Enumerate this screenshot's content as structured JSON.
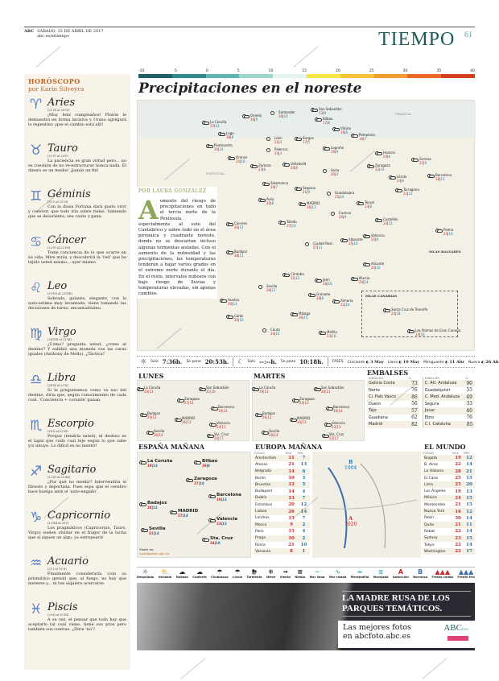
{
  "header": {
    "brand": "ABC",
    "date": "SÁBADO, 15 DE ABRIL DE 2017",
    "site": "abc.es/eltiempo",
    "section": "TIEMPO",
    "page": "61"
  },
  "horoscope": {
    "title": "HORÓSCOPO",
    "author": "por Karin Silveyra",
    "signs": [
      {
        "glyph": "♈",
        "name": "Aries",
        "dates": "(21-III al 20-IV)",
        "text": "¡Muy feliz cumpleaños! Plutón le demuestra en forma incisiva y Urano agregará lo repentino ¡que el cambio está allí!"
      },
      {
        "glyph": "♉",
        "name": "Tauro",
        "dates": "(21-IV al 20-V)",
        "text": "La paciencia es gran virtud pero... no es cuestión de no re-estructurar nunca nada. El dinero es un medio! ¡Jamás un fin!"
      },
      {
        "glyph": "♊",
        "name": "Géminis",
        "dates": "(21-V al 21-VI)",
        "text": "Con la diosa Fortuna dará gusto vivir y convivir, que todo iría sobre rieles. Sabiendo que se desorienta, sea cauto y gana."
      },
      {
        "glyph": "♋",
        "name": "Cáncer",
        "dates": "(22-VI al 22-VII)",
        "text": "Tome conciencia de lo que ocurre en su vida. Mire atrás, y descubrirá la 'red' que ha tejido usted mismo... ayer mismo."
      },
      {
        "glyph": "♌",
        "name": "Leo",
        "dates": "(23-VII al 23-VIII)",
        "text": "Sobrado, galante, elegante, con la auto-estima muy levantada, viene tomando las decisiones de turno, encantadísimo."
      },
      {
        "glyph": "♍",
        "name": "Virgo",
        "dates": "(24-VIII al 23-IX)",
        "text": "¿Cómo? pregunta usted, ¿crees el destino? Y exhibió una moneda con las caras iguales (Anthony de Mello). ¿Táctica?"
      },
      {
        "glyph": "♎",
        "name": "Libra",
        "dates": "(24-IX al 23-X)",
        "text": "Si le preguntamos como va eso del destino, diría que, según conocimiento de cada cual. 'Conciencia + corazón' ganan."
      },
      {
        "glyph": "♏",
        "name": "Escorpio",
        "dates": "(24-X al 22-XI)",
        "text": "Porque (tendría usted), el destino es el tapiz que cada cual teje según lo que sabe y/o intuye. Lo difícil es no mentir!"
      },
      {
        "glyph": "♐",
        "name": "Sagitario",
        "dates": "(23-XI al 21-XII)",
        "text": "¿Por qué no mentir? Intervendría el filósofo y deportista. Pues sepa que el cerebro hace huelga ante el 'auto-engaño'."
      },
      {
        "glyph": "♑",
        "name": "Capricornio",
        "dates": "(22-XII al 20-I)",
        "text": "Los pragmáticos (Capricornio, Tauro, Virgo) suelen olvidar en el fragor de la lucha que si siguen un algo, ya estropeará!"
      },
      {
        "glyph": "♒",
        "name": "Acuario",
        "dates": "(21-I al 19-II)",
        "text": "Finalmente consideraría (con su prismático genial) que, al fuego, no hay que meterse y... ni tan siquiera acercarse."
      },
      {
        "glyph": "♓",
        "name": "Piscis",
        "dates": "(20-II al 20-III)",
        "text": "A su vez, el pensar que todo hay que aceptarlo tal cual viene, tiene sus pros pero también sus contras. ¿Diría 'no'?"
      }
    ]
  },
  "temp_scale": {
    "ticks": [
      "-10",
      "-5",
      "0",
      "5",
      "10",
      "15",
      "20",
      "25",
      "30",
      "35",
      "40"
    ],
    "colors": [
      "#1f5f66",
      "#2e8a90",
      "#5bb6b0",
      "#9fd6cc",
      "#e2f3ee",
      "#f7e64a",
      "#f5c23a",
      "#f39a30",
      "#e86a25",
      "#d2401e"
    ]
  },
  "main": {
    "title": "Precipitaciones en el noreste",
    "map_labels": {
      "francia": "FRANCIA",
      "portugal": "PORTUGAL",
      "baleares": "ISLAS BALEARES",
      "canarias": "ISLAS CANARIAS"
    },
    "cities": [
      [
        "Santander",
        "16",
        "10"
      ],
      [
        "San Sebastián",
        "13",
        "9"
      ],
      [
        "Oviedo",
        "16",
        "9"
      ],
      [
        "Bilbao",
        "17",
        "8"
      ],
      [
        "La Coruña",
        "17",
        "13"
      ],
      [
        "Lugo",
        "18",
        "8"
      ],
      [
        "León",
        "21",
        "4"
      ],
      [
        "Burgos",
        "17",
        "5"
      ],
      [
        "Vitoria",
        "16",
        "6"
      ],
      [
        "Pamplona",
        "16",
        "7"
      ],
      [
        "Pontevedra",
        "20",
        "14"
      ],
      [
        "Orense",
        "24",
        "10"
      ],
      [
        "Palencia",
        "24",
        "3"
      ],
      [
        "Logroño",
        "19",
        "9"
      ],
      [
        "Huesca",
        "24",
        "8"
      ],
      [
        "Gerona",
        "21",
        "9"
      ],
      [
        "Zamora",
        "23",
        "6"
      ],
      [
        "Valladolid",
        "20",
        "6"
      ],
      [
        "Soria",
        "20",
        "4"
      ],
      [
        "Zaragoza",
        "22",
        "10"
      ],
      [
        "Lérida",
        "24",
        "9"
      ],
      [
        "Barcelona",
        "18",
        "13"
      ],
      [
        "Salamanca",
        "24",
        "7"
      ],
      [
        "Segovia",
        "21",
        "9"
      ],
      [
        "Guadalajara",
        "25",
        "10"
      ],
      [
        "Tarragona",
        "22",
        "13"
      ],
      [
        "Ávila",
        "20",
        "8"
      ],
      [
        "MADRID",
        "26",
        "13"
      ],
      [
        "Teruel",
        "23",
        "8"
      ],
      [
        "Cáceres",
        "26",
        "12"
      ],
      [
        "Cuenca",
        "24",
        "9"
      ],
      [
        "Castellón",
        "23",
        "13"
      ],
      [
        "Toledo",
        "27",
        "13"
      ],
      [
        "Palma",
        "24",
        "10"
      ],
      [
        "Valencia",
        "25",
        "9"
      ],
      [
        "Badajoz",
        "28",
        "11"
      ],
      [
        "Ciudad Real",
        "27",
        "11"
      ],
      [
        "Albacete",
        "25",
        "10"
      ],
      [
        "Alicante",
        "24",
        "10"
      ],
      [
        "Córdoba",
        "31",
        "12"
      ],
      [
        "Jaén",
        "28",
        "16"
      ],
      [
        "Murcia",
        "29",
        "14"
      ],
      [
        "Sevilla",
        "29",
        "13"
      ],
      [
        "Huelva",
        "26",
        "13"
      ],
      [
        "Granada",
        "28",
        "8"
      ],
      [
        "Almería",
        "22",
        "16"
      ],
      [
        "Cádiz",
        "20",
        "16"
      ],
      [
        "Málaga",
        "26",
        "15"
      ],
      [
        "Ceuta",
        "24",
        "14"
      ],
      [
        "Melilla",
        "23",
        "16"
      ],
      [
        "Santa Cruz de Tenerife",
        "24",
        "18"
      ],
      [
        "Las Palmas de Gran Canaria",
        "24",
        "18"
      ]
    ]
  },
  "article": {
    "byline": "POR LAURA GONZÁLEZ",
    "initial": "A",
    "text": "umento del riesgo de precipitaciones en todo el tercio norte de la Península, especialmente al este del Cantábrico y sobre todo en el área pirenaica y cuadrante noreste, donde no se descartan incluso algunas tormentas aisladas. Con el aumento de la nubosidad y las precipitaciones, las temperaturas tenderán a bajar varios grados en el extremo norte durante el día. En el resto, intervalos nubosos con bajo riesgo de lluvias y temperaturas elevadas, sin apenas cambios."
  },
  "sun": {
    "rise_label": "Sale",
    "rise": "7:36h.",
    "set_label": "Se pone",
    "set": "20:53h."
  },
  "moon": {
    "rise_label": "Sale",
    "rise": "--:--h.",
    "set_label": "Se pone",
    "set": "10:18h.",
    "phases_label": "FASES",
    "phases": [
      {
        "name": "Creciente",
        "date": "3 May"
      },
      {
        "name": "Llena",
        "date": "10 May"
      },
      {
        "name": "Menguante",
        "date": "11 Abr"
      },
      {
        "name": "Nueva",
        "date": "26 Abr"
      }
    ]
  },
  "forecast": {
    "lunes": "LUNES",
    "martes": "MARTES",
    "mini_cities": [
      "La Coruña",
      "San Sebastián",
      "Zaragoza",
      "Barcelona",
      "Badajoz",
      "MADRID",
      "Valencia",
      "Sevilla",
      "Sta. Cruz"
    ],
    "lunes_vals": [
      "20|13",
      "21|10",
      "27|11",
      "19|14",
      "29|12",
      "26|13",
      "24|13",
      "30|14",
      "24|17"
    ],
    "martes_vals": [
      "19|13",
      "20|11",
      "24|13",
      "19|14",
      "26|12",
      "24|13",
      "23|13",
      "28|14",
      "23|17"
    ]
  },
  "embalses": {
    "title": "EMBALSES",
    "col_name": "EMBALSES",
    "col_pct": "%",
    "left": [
      [
        "Galicia Costa",
        "73"
      ],
      [
        "Norte",
        "76"
      ],
      [
        "Cl. País Vasco",
        "86"
      ],
      [
        "Duero",
        "56"
      ],
      [
        "Tajo",
        "57"
      ],
      [
        "Guadiana",
        "62"
      ],
      [
        "Madrid",
        "82"
      ]
    ],
    "right": [
      [
        "C. Atl. Andaluza",
        "90"
      ],
      [
        "Guadalquivir",
        "55"
      ],
      [
        "C. Med. Andaluza",
        "49"
      ],
      [
        "Segura",
        "33"
      ],
      [
        "Júcar",
        "40"
      ],
      [
        "Ebro",
        "76"
      ],
      [
        "C.I. Cataluña",
        "85"
      ]
    ]
  },
  "espana": {
    "title": "ESPAÑA MAÑANA",
    "cities": [
      [
        "La Coruña",
        "19",
        "13"
      ],
      [
        "Bilbao",
        "19",
        "8"
      ],
      [
        "Zaragoza",
        "27",
        "10"
      ],
      [
        "Barcelona",
        "18",
        "13"
      ],
      [
        "Badajoz",
        "28",
        "12"
      ],
      [
        "MADRID",
        "27",
        "14"
      ],
      [
        "Valencia",
        "23",
        "13"
      ],
      [
        "Sevilla",
        "31",
        "14"
      ],
      [
        "Sta. Cruz",
        "24",
        "18"
      ]
    ],
    "foot_label": "Visite en",
    "foot_link": "canalmeteo.abc.es"
  },
  "europa": {
    "title": "EUROPA MAÑANA",
    "cols": [
      "CIUDAD",
      "MAX",
      "MIN"
    ],
    "rows": [
      [
        "Ámsterdam",
        "11",
        "7"
      ],
      [
        "Atenas",
        "21",
        "13"
      ],
      [
        "Belgrado",
        "14",
        "6"
      ],
      [
        "Berlín",
        "10",
        "3"
      ],
      [
        "Bruselas",
        "12",
        "5"
      ],
      [
        "Budapest",
        "14",
        "4"
      ],
      [
        "Dublín",
        "13",
        "7"
      ],
      [
        "Estambul",
        "20",
        "12"
      ],
      [
        "Lisboa",
        "26",
        "14"
      ],
      [
        "Londres",
        "15",
        "7"
      ],
      [
        "Moscú",
        "9",
        "2"
      ],
      [
        "París",
        "15",
        "4"
      ],
      [
        "Praga",
        "10",
        "2"
      ],
      [
        "Roma",
        "21",
        "10"
      ],
      [
        "Varsovia",
        "8",
        "1"
      ]
    ],
    "pressure": [
      {
        "type": "B",
        "value": "1004"
      },
      {
        "type": "A",
        "value": "1020"
      }
    ]
  },
  "mundo": {
    "title": "EL MUNDO",
    "cols": [
      "CIUDAD",
      "MAX",
      "MIN"
    ],
    "rows": [
      [
        "Bogotá",
        "19",
        "12"
      ],
      [
        "B. Aires",
        "22",
        "14"
      ],
      [
        "La Habana",
        "28",
        "21"
      ],
      [
        "El Cairo",
        "25",
        "15"
      ],
      [
        "Lima",
        "25",
        "20"
      ],
      [
        "Los Ángeles",
        "19",
        "13"
      ],
      [
        "México",
        "24",
        "15"
      ],
      [
        "Montevideo",
        "21",
        "15"
      ],
      [
        "Nueva York",
        "16",
        "12"
      ],
      [
        "Pekín",
        "30",
        "14"
      ],
      [
        "Quito",
        "21",
        "11"
      ],
      [
        "Rabat",
        "22",
        "14"
      ],
      [
        "Sydney",
        "23",
        "15"
      ],
      [
        "Tokyo",
        "22",
        "14"
      ],
      [
        "Washington",
        "22",
        "17"
      ]
    ]
  },
  "legend": [
    [
      "☼",
      "Despejado"
    ],
    [
      "⛅",
      "Variable"
    ],
    [
      "☁",
      "Nuboso"
    ],
    [
      "☁",
      "Cubierto"
    ],
    [
      "☂",
      "Chubascos"
    ],
    [
      "☂",
      "Lluvia"
    ],
    [
      "⛈",
      "Tormenta"
    ],
    [
      "❄",
      "Nieve"
    ],
    [
      "➟",
      "Viento"
    ],
    [
      "≡",
      "Niebla"
    ],
    [
      "~",
      "Mar llana"
    ],
    [
      "∿",
      "Mar rizada"
    ],
    [
      "≈",
      "Marejadilla"
    ],
    [
      "≋",
      "Marejada"
    ],
    [
      "A",
      "Anticiclón"
    ],
    [
      "B",
      "Borrasca"
    ],
    [
      "▲▲▲",
      "Frente cálido"
    ],
    [
      "▲▲▲",
      "Frente frío"
    ]
  ],
  "ad": {
    "headline": "LA MADRE RUSA DE LOS PARQUES TEMÁTICOS.",
    "sub1": "Las mejores fotos",
    "sub2": "en abcfoto.abc.es",
    "logo": "ABC",
    "logo_small": "foto"
  },
  "watermark": "ABC"
}
